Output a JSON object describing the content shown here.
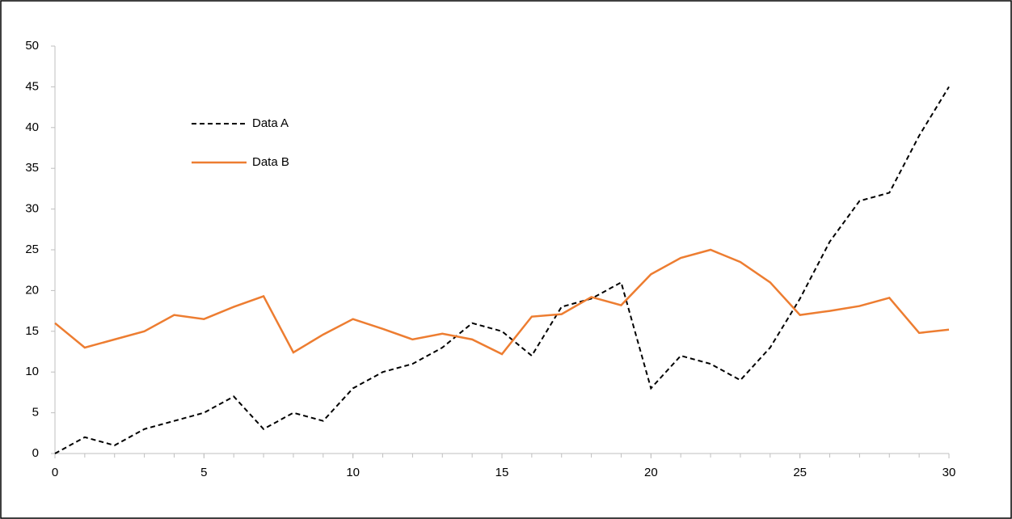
{
  "chart_data": {
    "type": "line",
    "x": [
      0,
      1,
      2,
      3,
      4,
      5,
      6,
      7,
      8,
      9,
      10,
      11,
      12,
      13,
      14,
      15,
      16,
      17,
      18,
      19,
      20,
      21,
      22,
      23,
      24,
      25,
      26,
      27,
      28,
      29,
      30
    ],
    "series": [
      {
        "name": "Data A",
        "color": "#000000",
        "dash": true,
        "values": [
          0,
          2,
          1,
          3,
          4,
          5,
          7,
          3,
          5,
          4,
          8,
          10,
          11,
          13,
          16,
          15,
          12,
          18,
          19,
          21,
          8,
          12,
          11,
          9,
          13,
          19,
          26,
          31,
          32,
          39,
          45
        ]
      },
      {
        "name": "Data B",
        "color": "#ed7d31",
        "dash": false,
        "values": [
          16,
          13,
          14,
          15,
          17,
          16.5,
          18,
          19.3,
          12.4,
          14.6,
          16.5,
          15.3,
          14,
          14.7,
          14,
          12.2,
          16.8,
          17.1,
          19.2,
          18.2,
          22,
          24,
          25,
          23.5,
          21,
          17,
          17.5,
          18.1,
          19.1,
          14.8,
          15.2
        ]
      }
    ],
    "xlim": [
      0,
      30
    ],
    "xticks": [
      0,
      5,
      10,
      15,
      20,
      25,
      30
    ],
    "ylim": [
      0,
      50
    ],
    "yticks": [
      0,
      5,
      10,
      15,
      20,
      25,
      30,
      35,
      40,
      45,
      50
    ],
    "grid": false,
    "legend": "upper-left"
  }
}
